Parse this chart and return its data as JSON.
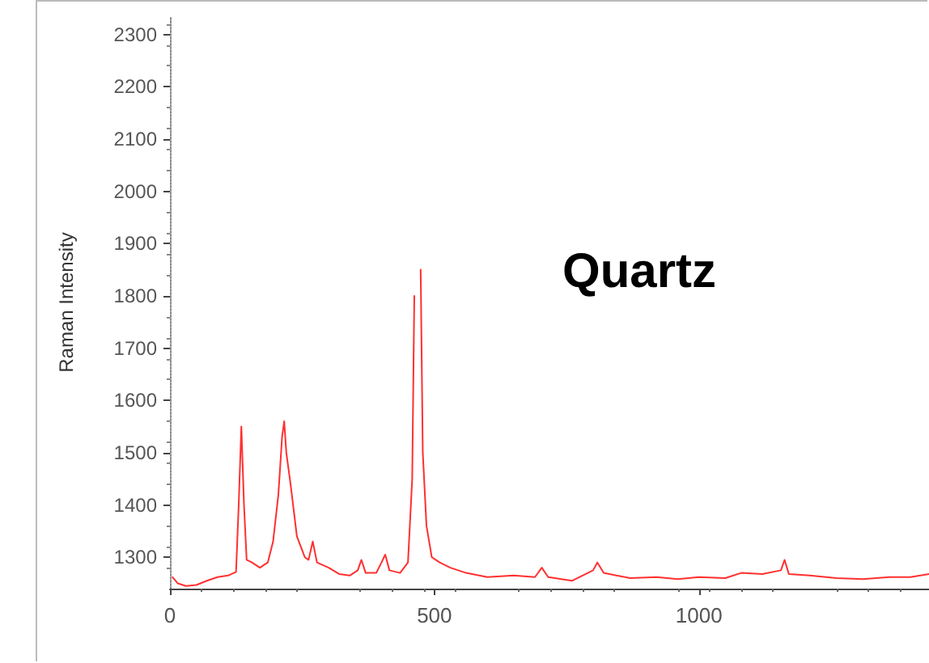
{
  "chart_data": {
    "type": "line",
    "title": "Quartz",
    "ylabel": "Raman Intensity",
    "x": [
      5,
      15,
      30,
      50,
      70,
      90,
      110,
      125,
      130,
      135,
      140,
      145,
      155,
      170,
      185,
      195,
      205,
      212,
      216,
      220,
      228,
      240,
      255,
      262,
      270,
      278,
      300,
      320,
      340,
      355,
      362,
      370,
      390,
      400,
      407,
      415,
      435,
      450,
      458,
      462,
      465,
      470,
      474,
      478,
      485,
      495,
      510,
      530,
      560,
      600,
      650,
      690,
      703,
      715,
      760,
      800,
      808,
      820,
      870,
      920,
      960,
      1000,
      1050,
      1080,
      1120,
      1155,
      1162,
      1170,
      1210,
      1260,
      1310,
      1360,
      1400,
      1435
    ],
    "series": [
      {
        "color": "#ff3030",
        "values": [
          1262,
          1250,
          1245,
          1247,
          1255,
          1262,
          1265,
          1272,
          1400,
          1550,
          1400,
          1295,
          1290,
          1280,
          1290,
          1330,
          1420,
          1530,
          1560,
          1500,
          1440,
          1340,
          1300,
          1295,
          1330,
          1290,
          1280,
          1268,
          1265,
          1275,
          1295,
          1270,
          1270,
          1290,
          1305,
          1275,
          1270,
          1290,
          1450,
          1800,
          null,
          null,
          1850,
          1500,
          1360,
          1300,
          1290,
          1280,
          1270,
          1262,
          1265,
          1262,
          1280,
          1262,
          1255,
          1275,
          1290,
          1270,
          1260,
          1262,
          1258,
          1262,
          1260,
          1270,
          1268,
          1275,
          1295,
          1268,
          1265,
          1260,
          1258,
          1262,
          1262,
          1268
        ]
      }
    ],
    "xlim": [
      0,
      1435
    ],
    "xticks": [
      0,
      500,
      1000
    ],
    "ylim": [
      1240,
      2335
    ],
    "yticks": [
      1300,
      1400,
      1500,
      1600,
      1700,
      1800,
      1900,
      2000,
      2100,
      2200,
      2300
    ],
    "grid": false,
    "marker": "none",
    "line_style": "solid"
  }
}
